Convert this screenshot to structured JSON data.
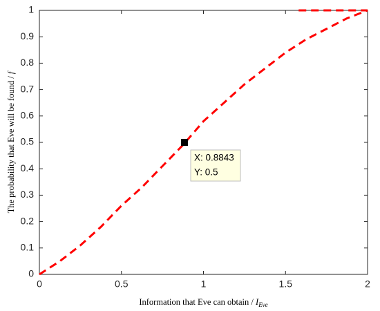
{
  "chart_data": {
    "type": "line",
    "xlabel": {
      "text": "Information that Eve can obtain / ",
      "symbol": "I",
      "subscript": "Eve"
    },
    "ylabel": {
      "text": "The probability that Eve will be found / ",
      "symbol": "f"
    },
    "xlim": [
      0,
      2
    ],
    "ylim": [
      0,
      1
    ],
    "xticks": [
      0,
      0.5,
      1,
      1.5,
      2
    ],
    "yticks": [
      0,
      0.1,
      0.2,
      0.3,
      0.4,
      0.5,
      0.6,
      0.7,
      0.8,
      0.9,
      1
    ],
    "grid": false,
    "series": [
      {
        "color": "#ff0000",
        "x": [
          0,
          0.125,
          0.25,
          0.375,
          0.5,
          0.625,
          0.75,
          0.875,
          1,
          1.125,
          1.25,
          1.375,
          1.5,
          1.625,
          1.75,
          1.875,
          2
        ],
        "values": [
          0,
          0.05,
          0.11,
          0.18,
          0.26,
          0.33,
          0.41,
          0.49,
          0.58,
          0.65,
          0.72,
          0.78,
          0.84,
          0.89,
          0.93,
          0.97,
          1
        ]
      },
      {
        "color": "#ff0000",
        "x": [
          1.58,
          2
        ],
        "values": [
          1,
          1
        ]
      }
    ],
    "datatip": {
      "x": 0.8843,
      "y": 0.5,
      "lines": [
        "X: 0.8843",
        "Y: 0.5"
      ]
    }
  }
}
